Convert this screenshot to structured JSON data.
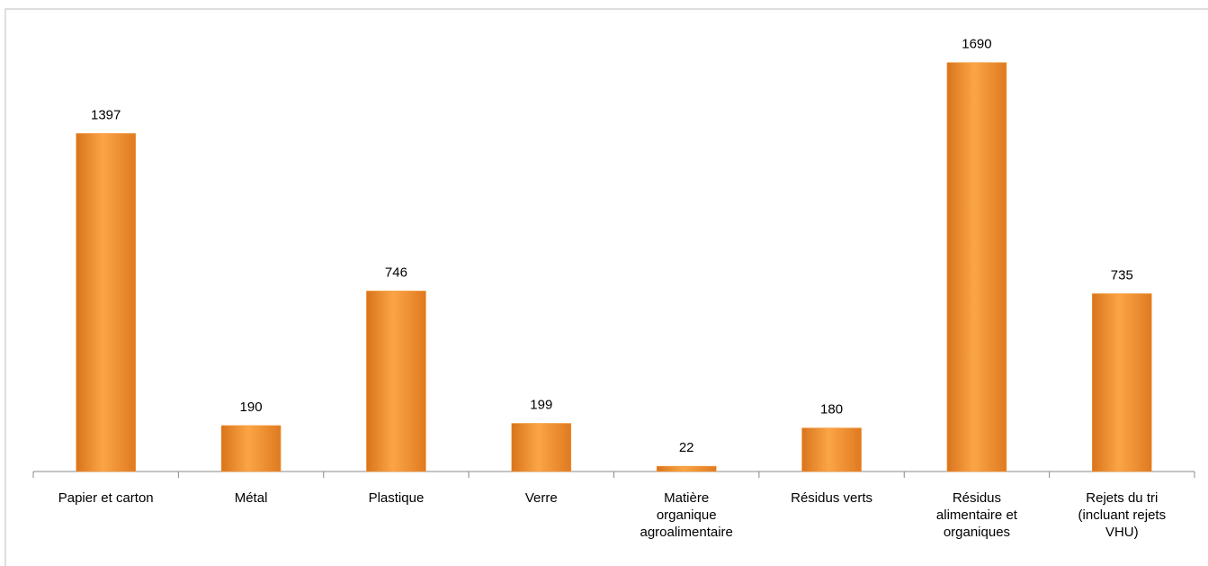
{
  "chart_data": {
    "type": "bar",
    "categories": [
      "Papier et carton",
      "Métal",
      "Plastique",
      "Verre",
      "Matière organique agroalimentaire",
      "Résidus verts",
      "Résidus alimentaire et organiques",
      "Rejets du tri (incluant rejets VHU)"
    ],
    "values": [
      1397,
      190,
      746,
      199,
      22,
      180,
      1690,
      735
    ],
    "color": "#f7962f",
    "ylim": [
      0,
      1800
    ]
  }
}
